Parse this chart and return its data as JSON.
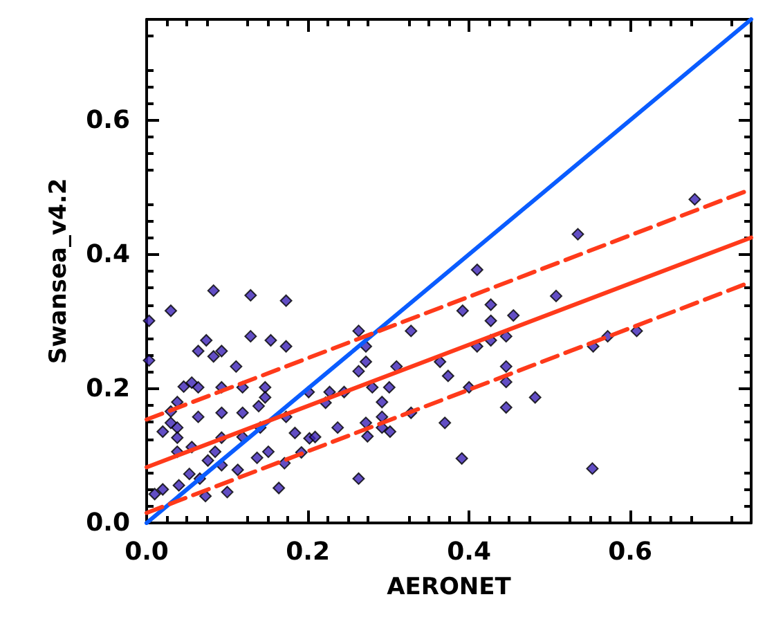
{
  "chart_data": {
    "type": "scatter",
    "xlabel": "AERONET",
    "ylabel": "Swansea_v4.2",
    "xlim": [
      0,
      0.75
    ],
    "ylim": [
      0,
      0.75
    ],
    "xticks": [
      {
        "value": 0,
        "label": "0.0"
      },
      0.2,
      0.4,
      0.6
    ],
    "yticks": [
      {
        "value": 0,
        "label": "0.0"
      },
      0.2,
      0.4,
      0.6
    ],
    "grid": false,
    "series": [
      {
        "marker": "diamond",
        "color": "#3b22b5",
        "x": [
          0.68,
          0.535,
          0.41,
          0.083,
          0.129,
          0.173,
          0.03,
          0.003,
          0.508,
          0.427,
          0.427,
          0.455,
          0.392,
          0.328,
          0.263,
          0.129,
          0.154,
          0.074,
          0.173,
          0.093,
          0.064,
          0.083,
          0.003,
          0.41,
          0.427,
          0.446,
          0.554,
          0.572,
          0.608,
          0.272,
          0.272,
          0.263,
          0.31,
          0.111,
          0.446,
          0.364,
          0.374,
          0.446,
          0.4,
          0.28,
          0.301,
          0.482,
          0.446,
          0.056,
          0.046,
          0.064,
          0.093,
          0.119,
          0.147,
          0.201,
          0.227,
          0.245,
          0.038,
          0.147,
          0.292,
          0.328,
          0.139,
          0.03,
          0.064,
          0.093,
          0.119,
          0.173,
          0.222,
          0.292,
          0.237,
          0.272,
          0.292,
          0.37,
          0.02,
          0.038,
          0.03,
          0.141,
          0.202,
          0.209,
          0.274,
          0.302,
          0.038,
          0.093,
          0.119,
          0.184,
          0.192,
          0.151,
          0.171,
          0.137,
          0.391,
          0.553,
          0.263,
          0.164,
          0.038,
          0.056,
          0.085,
          0.04,
          0.053,
          0.073,
          0.093,
          0.113,
          0.1,
          0.02,
          0.01,
          0.076,
          0.066
        ],
        "values": [
          0.482,
          0.43,
          0.377,
          0.346,
          0.339,
          0.331,
          0.316,
          0.301,
          0.338,
          0.325,
          0.301,
          0.309,
          0.316,
          0.286,
          0.286,
          0.278,
          0.272,
          0.272,
          0.263,
          0.256,
          0.256,
          0.248,
          0.242,
          0.263,
          0.272,
          0.278,
          0.263,
          0.278,
          0.286,
          0.263,
          0.24,
          0.226,
          0.233,
          0.233,
          0.233,
          0.24,
          0.219,
          0.21,
          0.202,
          0.202,
          0.202,
          0.187,
          0.172,
          0.209,
          0.203,
          0.202,
          0.202,
          0.202,
          0.202,
          0.195,
          0.195,
          0.195,
          0.18,
          0.187,
          0.18,
          0.164,
          0.174,
          0.166,
          0.158,
          0.164,
          0.164,
          0.158,
          0.179,
          0.158,
          0.142,
          0.149,
          0.142,
          0.149,
          0.136,
          0.142,
          0.149,
          0.142,
          0.126,
          0.128,
          0.129,
          0.136,
          0.127,
          0.127,
          0.128,
          0.134,
          0.105,
          0.106,
          0.089,
          0.097,
          0.096,
          0.081,
          0.066,
          0.052,
          0.106,
          0.113,
          0.106,
          0.056,
          0.073,
          0.04,
          0.086,
          0.079,
          0.046,
          0.05,
          0.043,
          0.093,
          0.066
        ]
      },
      {
        "type": "line",
        "color": "#0a5cff",
        "line_style": "solid",
        "x": [
          0,
          0.75
        ],
        "values": [
          0,
          0.75
        ]
      },
      {
        "type": "line",
        "color": "#ff3a1a",
        "line_style": "solid",
        "x": [
          0,
          0.75
        ],
        "values": [
          0.083,
          0.425
        ]
      },
      {
        "type": "line",
        "color": "#ff3a1a",
        "line_style": "dashed",
        "x": [
          0,
          0.75
        ],
        "values": [
          0.154,
          0.497
        ]
      },
      {
        "type": "line",
        "color": "#ff3a1a",
        "line_style": "dashed",
        "x": [
          0,
          0.75
        ],
        "values": [
          0.015,
          0.359
        ]
      }
    ]
  }
}
